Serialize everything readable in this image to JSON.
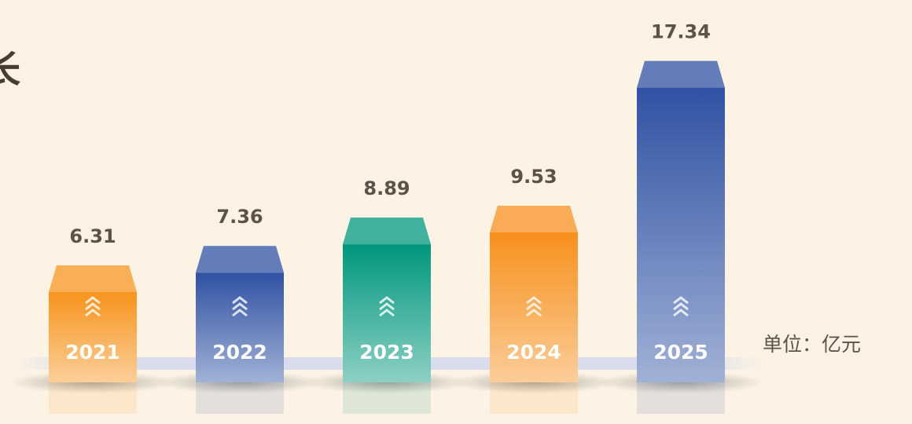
{
  "chart_data": {
    "type": "bar",
    "title": "长",
    "unit_label": "单位：亿元",
    "categories": [
      "2021",
      "2022",
      "2023",
      "2024",
      "2025"
    ],
    "values": [
      6.31,
      7.36,
      8.89,
      9.53,
      17.34
    ],
    "colors": [
      "#f7941d",
      "#2f52a3",
      "#00977c",
      "#f7901c",
      "#2f52a3"
    ],
    "ylim": [
      0,
      18
    ]
  }
}
